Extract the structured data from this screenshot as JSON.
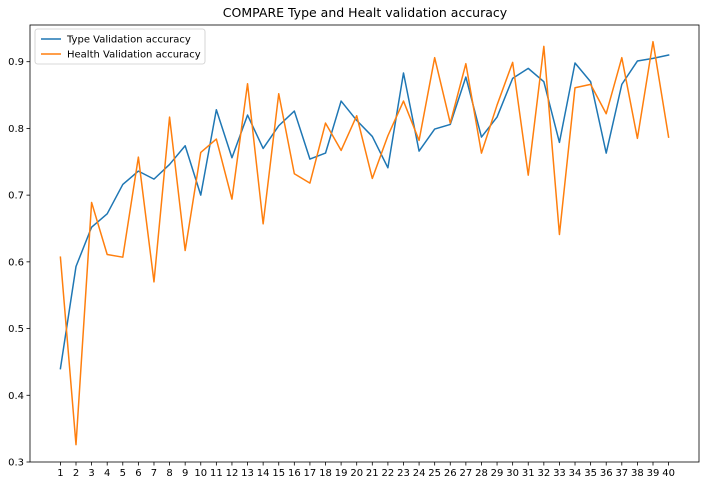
{
  "chart_data": {
    "type": "line",
    "title": "COMPARE Type and Healt validation accuracy",
    "xlabel": "",
    "ylabel": "",
    "x": [
      1,
      2,
      3,
      4,
      5,
      6,
      7,
      8,
      9,
      10,
      11,
      12,
      13,
      14,
      15,
      16,
      17,
      18,
      19,
      20,
      21,
      22,
      23,
      24,
      25,
      26,
      27,
      28,
      29,
      30,
      31,
      32,
      33,
      34,
      35,
      36,
      37,
      38,
      39,
      40
    ],
    "xticks": [
      "1",
      "2",
      "3",
      "4",
      "5",
      "6",
      "7",
      "8",
      "9",
      "10",
      "11",
      "12",
      "13",
      "14",
      "15",
      "16",
      "17",
      "18",
      "19",
      "20",
      "21",
      "22",
      "23",
      "24",
      "25",
      "26",
      "27",
      "28",
      "29",
      "30",
      "31",
      "32",
      "33",
      "34",
      "35",
      "36",
      "37",
      "38",
      "39",
      "40"
    ],
    "ylim": [
      0.3,
      0.955
    ],
    "yticks": [
      0.3,
      0.4,
      0.5,
      0.6,
      0.7,
      0.8,
      0.9
    ],
    "ytick_labels": [
      "0.3",
      "0.4",
      "0.5",
      "0.6",
      "0.7",
      "0.8",
      "0.9"
    ],
    "grid": false,
    "legend_position": "top-left",
    "series": [
      {
        "name": "Type Validation accuracy",
        "color": "#1f77b4",
        "values": [
          0.44,
          0.593,
          0.652,
          0.672,
          0.716,
          0.736,
          0.724,
          0.746,
          0.774,
          0.7,
          0.828,
          0.756,
          0.82,
          0.77,
          0.804,
          0.826,
          0.754,
          0.763,
          0.841,
          0.812,
          0.788,
          0.741,
          0.883,
          0.766,
          0.799,
          0.806,
          0.877,
          0.787,
          0.817,
          0.875,
          0.89,
          0.87,
          0.779,
          0.898,
          0.87,
          0.763,
          0.866,
          0.901,
          0.905,
          0.91
        ]
      },
      {
        "name": "Health Validation accuracy",
        "color": "#ff7f0e",
        "values": [
          0.607,
          0.326,
          0.689,
          0.611,
          0.607,
          0.757,
          0.57,
          0.817,
          0.617,
          0.764,
          0.784,
          0.694,
          0.867,
          0.657,
          0.852,
          0.732,
          0.718,
          0.808,
          0.767,
          0.819,
          0.725,
          0.789,
          0.841,
          0.782,
          0.906,
          0.808,
          0.897,
          0.763,
          0.835,
          0.899,
          0.73,
          0.923,
          0.641,
          0.861,
          0.866,
          0.822,
          0.906,
          0.785,
          0.93,
          0.787
        ]
      }
    ]
  }
}
